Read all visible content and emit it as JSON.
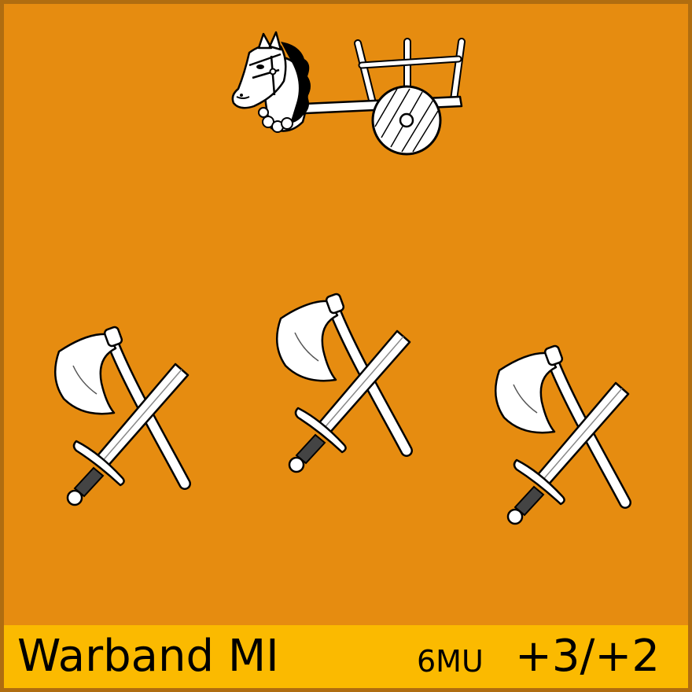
{
  "counter": {
    "background_color": "#e68c10",
    "border_color": "#b06d10",
    "label_bar_color": "#fbba00",
    "unit_name": "Warband MI",
    "movement": "6MU",
    "combat_factors": "+3/+2"
  },
  "icons": {
    "top": "horse-cart-icon",
    "troops": [
      "axe-sword-icon",
      "axe-sword-icon",
      "axe-sword-icon"
    ]
  }
}
